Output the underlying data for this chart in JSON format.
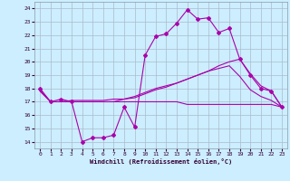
{
  "xlabel": "Windchill (Refroidissement éolien,°C)",
  "bg_color": "#cceeff",
  "grid_color": "#aabbcc",
  "line_color": "#aa00aa",
  "xlim": [
    -0.5,
    23.5
  ],
  "ylim": [
    13.5,
    24.5
  ],
  "yticks": [
    14,
    15,
    16,
    17,
    18,
    19,
    20,
    21,
    22,
    23,
    24
  ],
  "xticks": [
    0,
    1,
    2,
    3,
    4,
    5,
    6,
    7,
    8,
    9,
    10,
    11,
    12,
    13,
    14,
    15,
    16,
    17,
    18,
    19,
    20,
    21,
    22,
    23
  ],
  "curve1_x": [
    0,
    1,
    2,
    3,
    4,
    5,
    6,
    7,
    8,
    9,
    10,
    11,
    12,
    13,
    14,
    15,
    16,
    17,
    18,
    19,
    20,
    21,
    22,
    23
  ],
  "curve1_y": [
    18.0,
    17.0,
    17.2,
    17.0,
    14.0,
    14.3,
    14.3,
    14.5,
    16.6,
    15.1,
    20.5,
    21.9,
    22.1,
    22.9,
    23.9,
    23.2,
    23.3,
    22.2,
    22.5,
    20.2,
    19.0,
    18.0,
    17.8,
    16.6
  ],
  "curve2_x": [
    0,
    1,
    2,
    3,
    4,
    5,
    6,
    7,
    8,
    9,
    10,
    11,
    12,
    13,
    14,
    15,
    16,
    17,
    18,
    19,
    20,
    21,
    22,
    23
  ],
  "curve2_y": [
    17.9,
    17.0,
    17.0,
    17.1,
    17.1,
    17.1,
    17.1,
    17.2,
    17.2,
    17.3,
    17.6,
    17.9,
    18.1,
    18.4,
    18.7,
    19.0,
    19.3,
    19.7,
    20.0,
    20.2,
    19.1,
    18.2,
    17.8,
    16.6
  ],
  "curve3_x": [
    0,
    1,
    2,
    3,
    4,
    5,
    6,
    7,
    8,
    9,
    10,
    11,
    12,
    13,
    14,
    15,
    16,
    17,
    18,
    19,
    20,
    21,
    22,
    23
  ],
  "curve3_y": [
    17.8,
    17.0,
    17.0,
    17.0,
    17.0,
    17.0,
    17.0,
    17.0,
    17.2,
    17.4,
    17.7,
    18.0,
    18.2,
    18.4,
    18.7,
    19.0,
    19.3,
    19.5,
    19.7,
    18.9,
    17.9,
    17.4,
    17.1,
    16.6
  ],
  "curve4_x": [
    0,
    1,
    2,
    3,
    4,
    5,
    6,
    7,
    8,
    9,
    10,
    11,
    12,
    13,
    14,
    15,
    16,
    17,
    18,
    19,
    20,
    21,
    22,
    23
  ],
  "curve4_y": [
    17.8,
    17.0,
    17.0,
    17.0,
    17.0,
    17.0,
    17.0,
    17.0,
    17.0,
    17.0,
    17.0,
    17.0,
    17.0,
    17.0,
    16.8,
    16.8,
    16.8,
    16.8,
    16.8,
    16.8,
    16.8,
    16.8,
    16.8,
    16.6
  ]
}
